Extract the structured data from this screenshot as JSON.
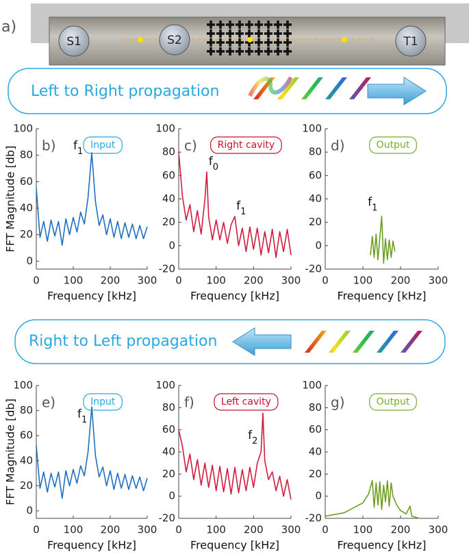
{
  "figure": {
    "panel": "a)",
    "s1": "S1",
    "s2": "S2",
    "t1": "T1",
    "banner_top": "Left to Right propagation",
    "banner_bottom": "Right to Left propagation"
  },
  "chart_data": [
    {
      "type": "line",
      "panel": "b)",
      "box_label": "Input",
      "box_color": "#29a8e0",
      "color": "#1f6fc0",
      "xlabel": "Frequency [kHz]",
      "ylabel": "FFT Magnitude [db]",
      "xlim": [
        0,
        300
      ],
      "ylim": [
        -6,
        100
      ],
      "xticks": [
        0,
        100,
        200,
        300
      ],
      "yticks": [
        0,
        20,
        40,
        60,
        80,
        100
      ],
      "x": [
        0,
        10,
        20,
        30,
        40,
        50,
        60,
        70,
        80,
        90,
        100,
        110,
        120,
        130,
        140,
        150,
        160,
        170,
        180,
        190,
        200,
        210,
        220,
        230,
        240,
        250,
        260,
        270,
        280,
        290,
        300
      ],
      "values": [
        55,
        18,
        30,
        15,
        31,
        19,
        30,
        12,
        32,
        20,
        33,
        22,
        37,
        28,
        48,
        82,
        45,
        27,
        35,
        20,
        32,
        18,
        30,
        17,
        29,
        18,
        28,
        17,
        27,
        17,
        26
      ],
      "annotations": [
        {
          "text": "f",
          "subscript": "1",
          "x": 100,
          "y": 87
        }
      ]
    },
    {
      "type": "line",
      "panel": "c)",
      "box_label": "Right cavity",
      "box_color": "#c8102e",
      "color": "#d11a3c",
      "xlabel": "Frequency [kHz]",
      "xlim": [
        0,
        300
      ],
      "ylim": [
        -20,
        100
      ],
      "xticks": [
        0,
        100,
        200,
        300
      ],
      "yticks": [
        -20,
        0,
        20,
        40,
        60,
        80,
        100
      ],
      "x": [
        0,
        10,
        20,
        30,
        40,
        50,
        60,
        70,
        75,
        80,
        90,
        100,
        110,
        120,
        130,
        140,
        150,
        160,
        170,
        180,
        190,
        200,
        210,
        220,
        230,
        240,
        250,
        260,
        270,
        280,
        290,
        300
      ],
      "values": [
        80,
        42,
        22,
        35,
        12,
        30,
        10,
        40,
        63,
        25,
        5,
        22,
        5,
        20,
        2,
        18,
        25,
        0,
        15,
        -5,
        16,
        -3,
        15,
        -8,
        12,
        -6,
        14,
        -10,
        12,
        -5,
        14,
        -8
      ],
      "annotations": [
        {
          "text": "f",
          "subscript": "0",
          "x": 80,
          "y": 72
        },
        {
          "text": "f",
          "subscript": "1",
          "x": 154,
          "y": 34
        }
      ]
    },
    {
      "type": "line",
      "panel": "d)",
      "box_label": "Output",
      "box_color": "#77ac30",
      "color": "#6b9e1f",
      "xlabel": "Frequency [kHz]",
      "xlim": [
        0,
        300
      ],
      "ylim": [
        -20,
        100
      ],
      "xticks": [
        0,
        100,
        200,
        300
      ],
      "yticks": [
        -20,
        0,
        20,
        40,
        60,
        80,
        100
      ],
      "x": [
        120,
        125,
        130,
        135,
        140,
        145,
        150,
        155,
        160,
        165,
        170,
        175,
        180,
        185
      ],
      "values": [
        -8,
        8,
        -10,
        10,
        -12,
        7,
        25,
        -15,
        6,
        -12,
        5,
        -10,
        4,
        -5
      ],
      "annotations": [
        {
          "text": "f",
          "subscript": "1",
          "x": 113,
          "y": 37
        }
      ]
    },
    {
      "type": "line",
      "panel": "e)",
      "box_label": "Input",
      "box_color": "#29a8e0",
      "color": "#1f6fc0",
      "xlabel": "Frequency [kHz]",
      "ylabel": "FFT Magnitude [db]",
      "xlim": [
        0,
        300
      ],
      "ylim": [
        -6,
        100
      ],
      "xticks": [
        0,
        100,
        200,
        300
      ],
      "yticks": [
        0,
        20,
        40,
        60,
        80,
        100
      ],
      "x": [
        0,
        10,
        20,
        30,
        40,
        50,
        60,
        70,
        80,
        90,
        100,
        110,
        120,
        130,
        140,
        150,
        160,
        170,
        180,
        190,
        200,
        210,
        220,
        230,
        240,
        250,
        260,
        270,
        280,
        290,
        300
      ],
      "values": [
        52,
        18,
        31,
        15,
        30,
        19,
        31,
        10,
        32,
        20,
        33,
        22,
        36,
        28,
        47,
        83,
        44,
        27,
        35,
        20,
        32,
        17,
        30,
        18,
        29,
        17,
        28,
        18,
        27,
        16,
        26
      ],
      "annotations": [
        {
          "text": "f",
          "subscript": "1",
          "x": 111,
          "y": 77
        }
      ]
    },
    {
      "type": "line",
      "panel": "f)",
      "box_label": "Left cavity",
      "box_color": "#c8102e",
      "color": "#d11a3c",
      "xlabel": "Frequency [kHz]",
      "xlim": [
        0,
        300
      ],
      "ylim": [
        -20,
        100
      ],
      "xticks": [
        0,
        100,
        200,
        300
      ],
      "yticks": [
        -20,
        0,
        20,
        40,
        60,
        80,
        100
      ],
      "x": [
        0,
        10,
        20,
        30,
        40,
        50,
        60,
        70,
        80,
        90,
        100,
        110,
        120,
        130,
        140,
        150,
        160,
        170,
        180,
        190,
        200,
        210,
        220,
        225,
        230,
        240,
        250,
        260,
        270,
        280,
        290,
        300
      ],
      "values": [
        60,
        45,
        22,
        38,
        15,
        33,
        10,
        30,
        8,
        28,
        5,
        27,
        4,
        25,
        2,
        26,
        3,
        24,
        5,
        26,
        8,
        30,
        40,
        75,
        32,
        15,
        22,
        5,
        18,
        0,
        15,
        -3
      ],
      "annotations": [
        {
          "text": "f",
          "subscript": "2",
          "x": 185,
          "y": 55
        }
      ]
    },
    {
      "type": "line",
      "panel": "g)",
      "box_label": "Output",
      "box_color": "#77ac30",
      "color": "#6b9e1f",
      "xlabel": "Frequency [kHz]",
      "xlim": [
        0,
        300
      ],
      "ylim": [
        -20,
        100
      ],
      "xticks": [
        0,
        100,
        200,
        300
      ],
      "yticks": [
        -20,
        0,
        20,
        40,
        60,
        80,
        100
      ],
      "x": [
        0,
        50,
        100,
        115,
        125,
        130,
        135,
        140,
        145,
        150,
        155,
        160,
        165,
        170,
        175,
        180,
        190,
        200,
        215,
        225,
        230,
        250
      ],
      "values": [
        -18,
        -15,
        -6,
        2,
        14,
        -10,
        12,
        -8,
        13,
        -12,
        10,
        -5,
        14,
        -9,
        12,
        0,
        -8,
        -13,
        -16,
        -9,
        -18,
        -20
      ],
      "annotations": []
    }
  ]
}
